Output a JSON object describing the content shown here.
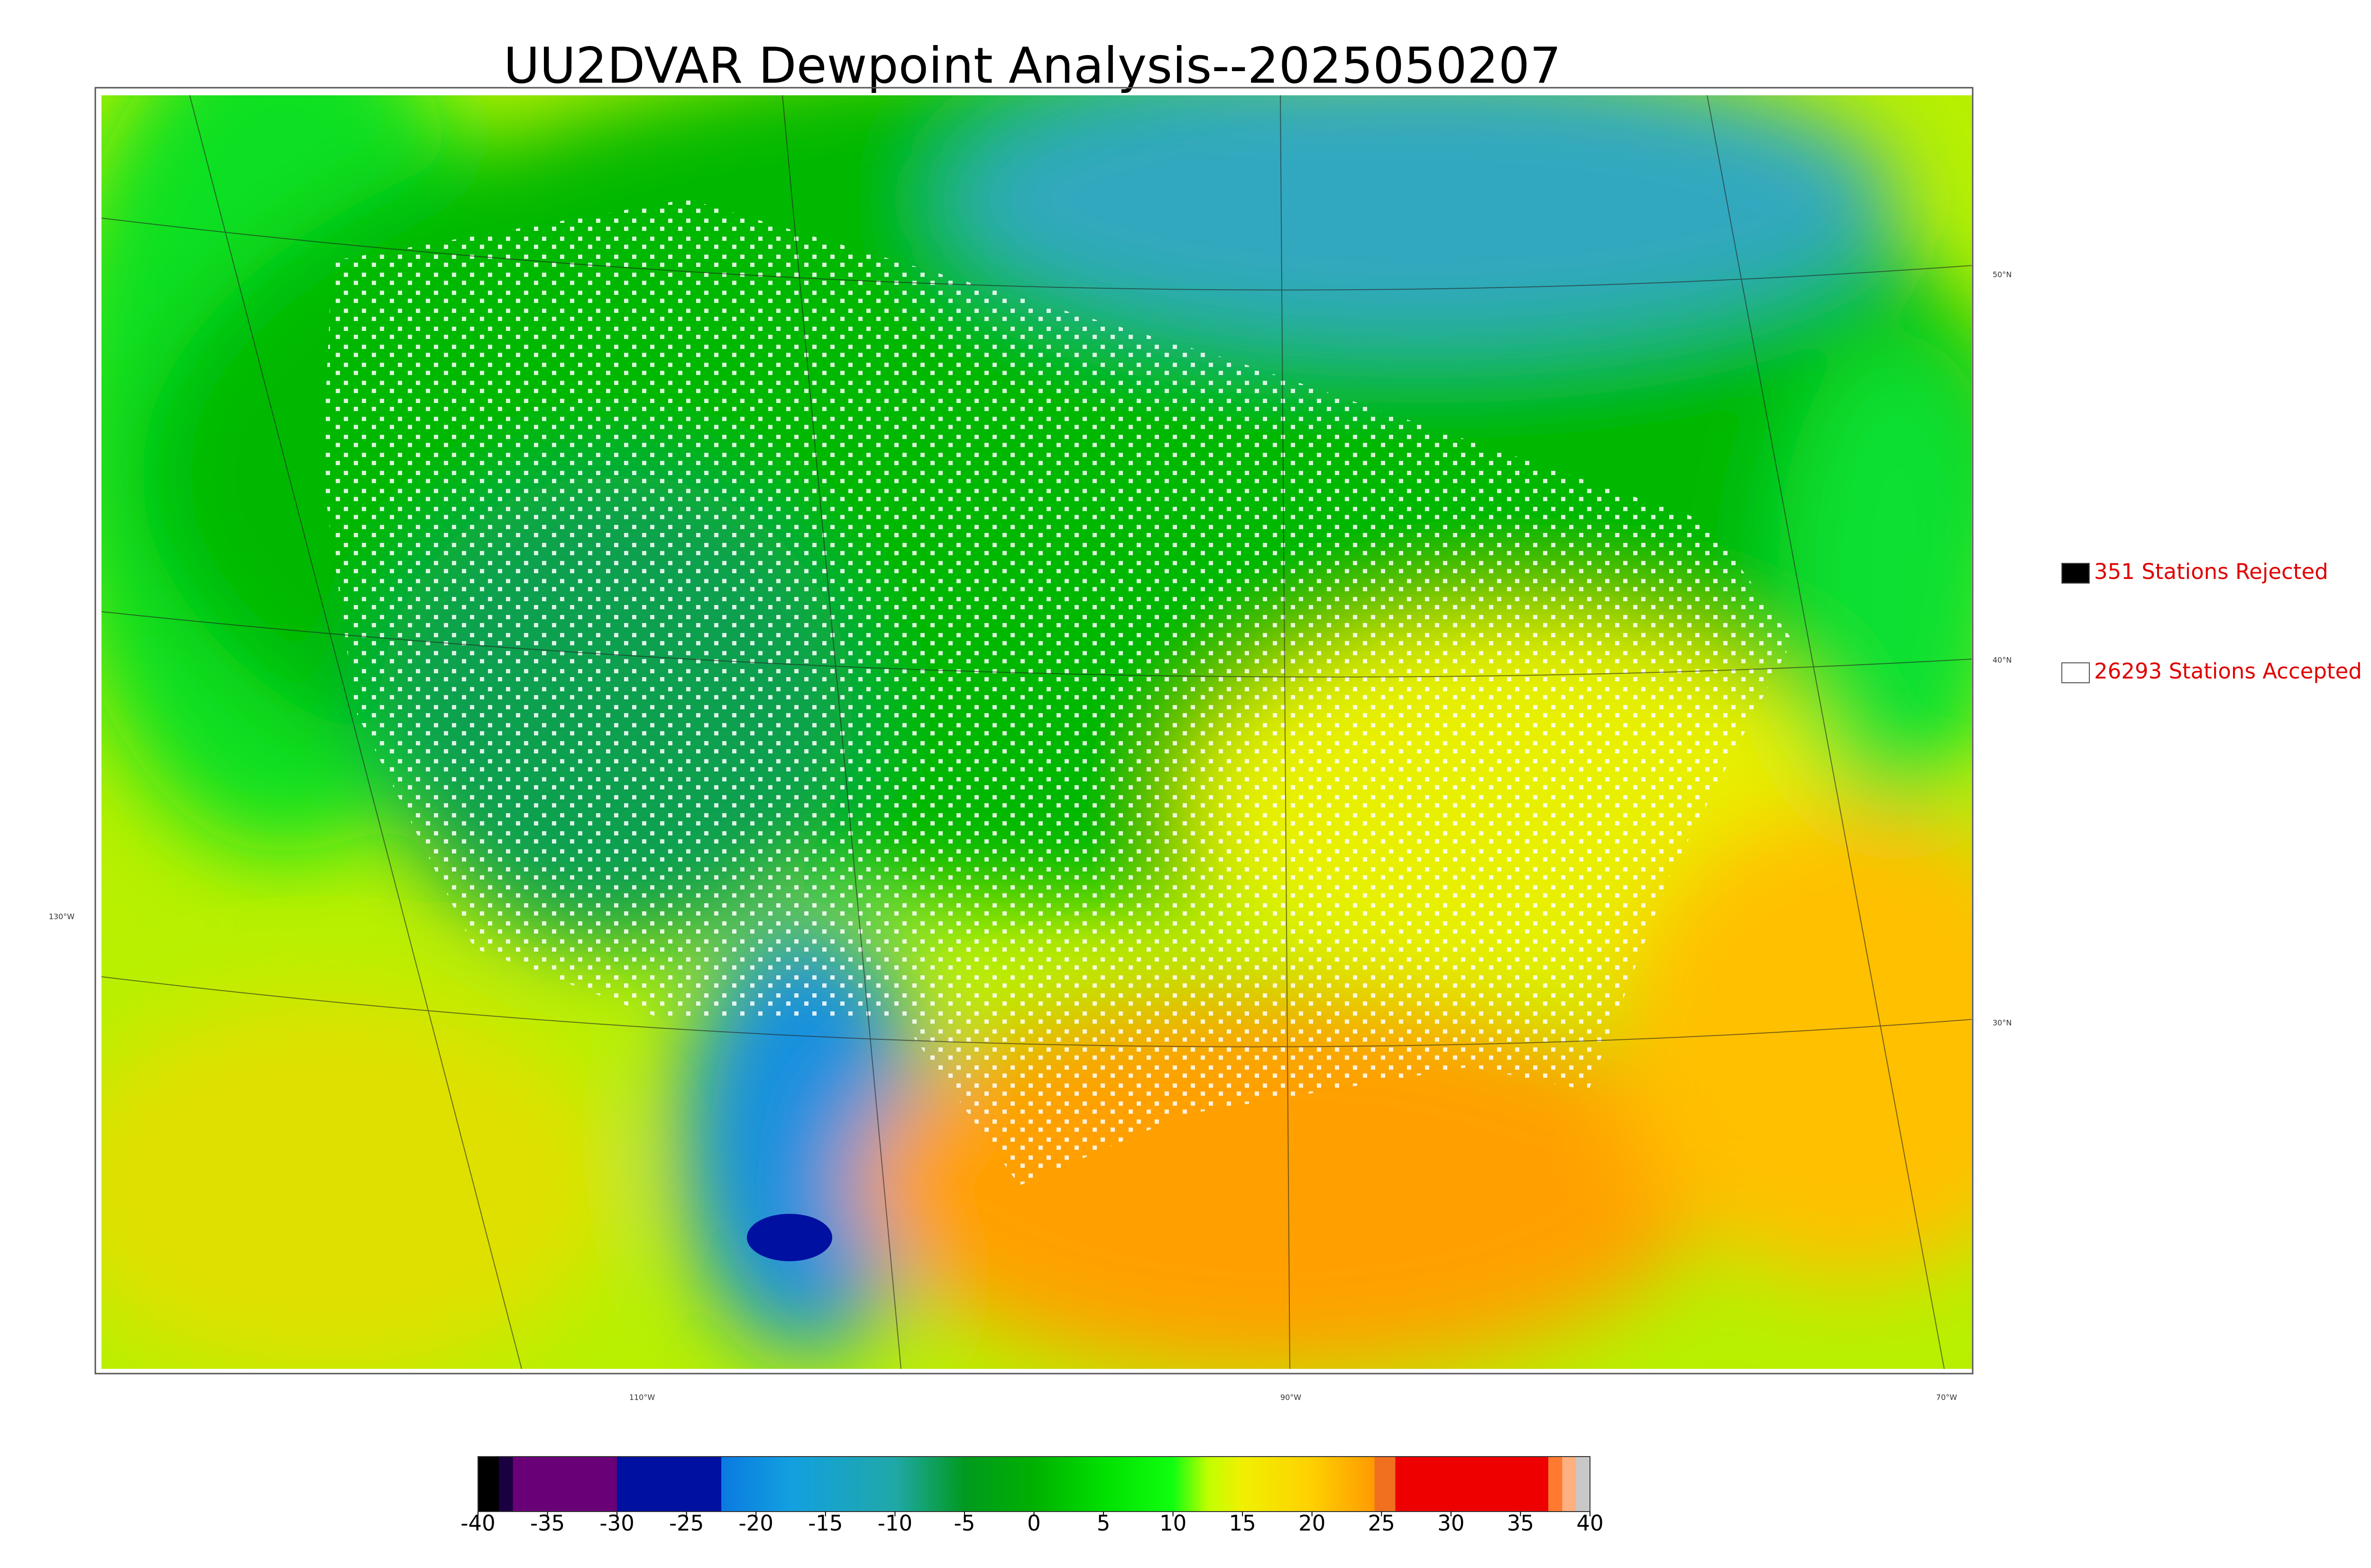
{
  "title": "UU2DVAR Dewpoint Analysis--2025050207",
  "graticule": {
    "lat_labels": [
      "50°N",
      "40°N",
      "30°N"
    ],
    "lon_labels": [
      "130°W",
      "110°W",
      "90°W",
      "70°W"
    ]
  },
  "legend": [
    {
      "label": "351 Stations Rejected",
      "color": "#000000"
    },
    {
      "label": "26293 Stations Accepted",
      "color": "#ffffff"
    }
  ],
  "colorbar": {
    "lim": [
      -40,
      40
    ],
    "ticks": [
      -40,
      -35,
      -30,
      -25,
      -20,
      -15,
      -10,
      -5,
      0,
      5,
      10,
      15,
      20,
      25,
      30,
      35,
      40
    ],
    "stops": [
      {
        "value": -40,
        "color": "#000000"
      },
      {
        "value": -38.5,
        "color": "#000000"
      },
      {
        "value": -38.5,
        "color": "#1a0040"
      },
      {
        "value": -37.5,
        "color": "#1a0040"
      },
      {
        "value": -37.5,
        "color": "#6a0078"
      },
      {
        "value": -30,
        "color": "#6a0078"
      },
      {
        "value": -30,
        "color": "#0010a0"
      },
      {
        "value": -22.5,
        "color": "#0010a0"
      },
      {
        "value": -22.5,
        "color": "#0a7ae0"
      },
      {
        "value": -17.5,
        "color": "#12a0e0"
      },
      {
        "value": -10,
        "color": "#20a8a8"
      },
      {
        "value": -5,
        "color": "#009a20"
      },
      {
        "value": 0,
        "color": "#00b000"
      },
      {
        "value": 5,
        "color": "#00e000"
      },
      {
        "value": 10,
        "color": "#10ff10"
      },
      {
        "value": 12.5,
        "color": "#c0ff00"
      },
      {
        "value": 15,
        "color": "#f0f000"
      },
      {
        "value": 20,
        "color": "#ffd000"
      },
      {
        "value": 24.5,
        "color": "#ff9a00"
      },
      {
        "value": 24.5,
        "color": "#f07020"
      },
      {
        "value": 26,
        "color": "#f07020"
      },
      {
        "value": 26,
        "color": "#ee0000"
      },
      {
        "value": 37,
        "color": "#ee0000"
      },
      {
        "value": 37,
        "color": "#ff7a30"
      },
      {
        "value": 38,
        "color": "#ff7a30"
      },
      {
        "value": 38,
        "color": "#ffb080"
      },
      {
        "value": 39,
        "color": "#ffb080"
      },
      {
        "value": 39,
        "color": "#c8c8c8"
      },
      {
        "value": 40,
        "color": "#c8c8c8"
      }
    ]
  }
}
